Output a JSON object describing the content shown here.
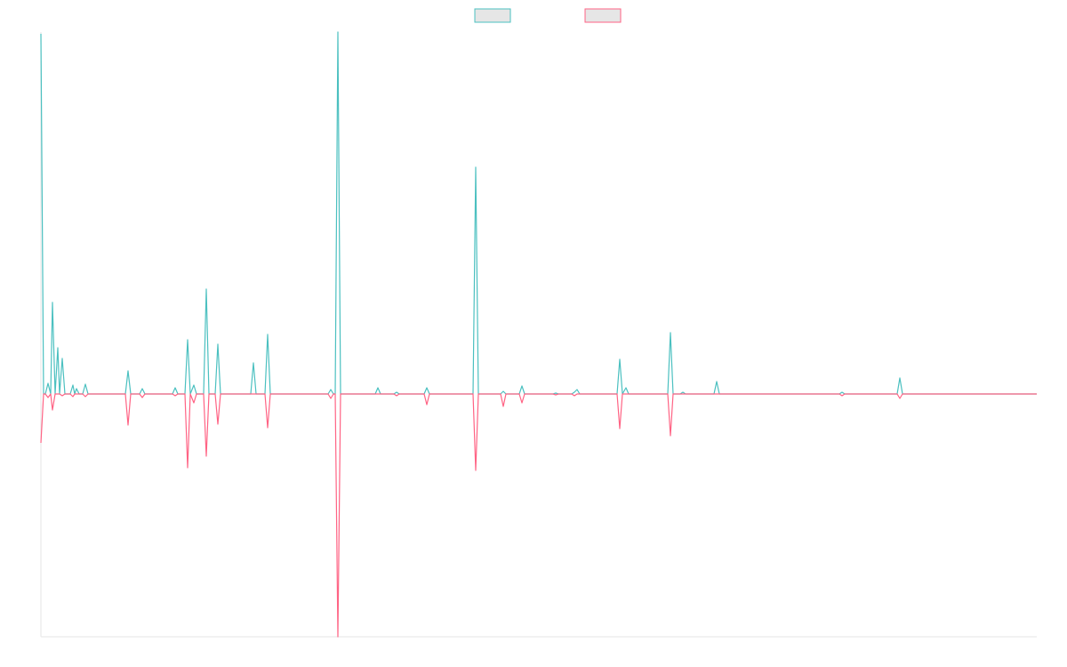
{
  "chart_data": {
    "type": "line",
    "x": [
      0,
      3,
      5,
      8,
      11,
      13,
      16,
      19,
      21,
      24,
      27,
      33,
      36,
      38,
      40,
      43,
      47,
      50,
      53,
      95,
      98,
      101,
      111,
      114,
      117,
      148,
      151,
      154,
      162,
      165,
      168,
      172,
      175,
      183,
      186,
      189,
      196,
      199,
      202,
      236,
      239,
      242,
      252,
      255,
      258,
      323,
      326,
      329,
      331,
      334,
      337,
      376,
      379,
      382,
      397,
      400,
      403,
      431,
      434,
      437,
      486,
      489,
      492,
      517,
      520,
      523,
      538,
      541,
      544,
      576,
      579,
      582,
      597,
      600,
      603,
      606,
      648,
      651,
      654,
      658,
      661,
      705,
      708,
      711,
      719,
      722,
      725,
      757,
      760,
      763,
      898,
      901,
      904,
      963,
      966,
      969,
      1120
    ],
    "series": [
      {
        "color": "#4bc0c0",
        "values": [
          405,
          0,
          0,
          12,
          0,
          103,
          0,
          52,
          0,
          40,
          0,
          0,
          10,
          0,
          6,
          0,
          0,
          11,
          0,
          0,
          26,
          0,
          0,
          6,
          0,
          0,
          7,
          0,
          0,
          61,
          0,
          10,
          0,
          0,
          118,
          0,
          0,
          56,
          0,
          0,
          35,
          0,
          0,
          67,
          0,
          0,
          5,
          0,
          0,
          407,
          0,
          0,
          7,
          0,
          0,
          2,
          0,
          0,
          7,
          0,
          0,
          255,
          0,
          0,
          3,
          0,
          0,
          9,
          0,
          0,
          1,
          0,
          0,
          2,
          5,
          0,
          0,
          39,
          0,
          7,
          0,
          0,
          69,
          0,
          0,
          2,
          0,
          0,
          14,
          0,
          0,
          2,
          0,
          0,
          18,
          0,
          0
        ]
      },
      {
        "color": "#ff6384",
        "values": [
          -55,
          0,
          0,
          -4,
          0,
          -18,
          0,
          0,
          0,
          -2,
          0,
          0,
          -3,
          0,
          0,
          0,
          0,
          -3,
          0,
          0,
          -35,
          0,
          0,
          -4,
          0,
          0,
          -2,
          0,
          0,
          -83,
          0,
          -10,
          0,
          0,
          -70,
          0,
          0,
          -34,
          0,
          0,
          0,
          0,
          0,
          -38,
          0,
          0,
          -5,
          0,
          0,
          -273,
          0,
          0,
          0,
          0,
          0,
          -2,
          0,
          0,
          -12,
          0,
          0,
          -86,
          0,
          0,
          -14,
          0,
          0,
          -10,
          0,
          0,
          -1,
          0,
          0,
          -2,
          0,
          0,
          0,
          -39,
          0,
          0,
          0,
          0,
          -47,
          0,
          0,
          0,
          0,
          0,
          0,
          0,
          0,
          -2,
          0,
          0,
          -5,
          0,
          0
        ]
      }
    ],
    "xlim": [
      0,
      1120
    ],
    "ylim": [
      -273,
      407
    ],
    "legend": "top"
  }
}
